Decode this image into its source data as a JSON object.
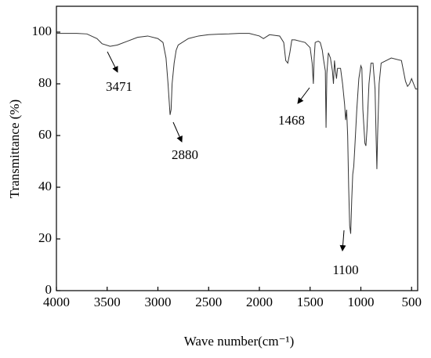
{
  "chart_data": {
    "type": "line",
    "xlabel": "Wave number(cm⁻¹)",
    "ylabel": "Transmittance (%)",
    "color": "#333333",
    "xlim": [
      4000,
      440
    ],
    "xticks": [
      4000,
      3500,
      3000,
      2500,
      2000,
      1500,
      1000,
      500
    ],
    "ylim": [
      0,
      110
    ],
    "yticks": [
      0,
      20,
      40,
      60,
      80,
      100
    ],
    "annotations": [
      "3471",
      "2880",
      "1468",
      "1100"
    ],
    "x": [
      4000,
      3800,
      3700,
      3600,
      3550,
      3471,
      3400,
      3300,
      3200,
      3100,
      3000,
      2950,
      2920,
      2900,
      2880,
      2870,
      2860,
      2840,
      2820,
      2800,
      2700,
      2600,
      2500,
      2400,
      2300,
      2200,
      2100,
      2000,
      1960,
      1900,
      1800,
      1760,
      1740,
      1720,
      1700,
      1680,
      1650,
      1600,
      1550,
      1500,
      1480,
      1468,
      1460,
      1450,
      1420,
      1400,
      1380,
      1370,
      1350,
      1343,
      1335,
      1320,
      1300,
      1280,
      1270,
      1260,
      1250,
      1240,
      1230,
      1200,
      1180,
      1160,
      1150,
      1140,
      1130,
      1120,
      1110,
      1100,
      1090,
      1080,
      1070,
      1060,
      1040,
      1020,
      1000,
      990,
      980,
      960,
      950,
      940,
      920,
      900,
      880,
      860,
      850,
      842,
      835,
      820,
      800,
      700,
      600,
      560,
      540,
      520,
      500,
      480,
      460,
      440
    ],
    "values": [
      99.5,
      99.5,
      99.3,
      97.5,
      95.5,
      94.5,
      95,
      96.5,
      98,
      98.5,
      97.5,
      96,
      90,
      80,
      68,
      70,
      80,
      88,
      93,
      95,
      97.5,
      98.5,
      99,
      99.2,
      99.3,
      99.5,
      99.5,
      98.5,
      97.5,
      99,
      98.5,
      96,
      89,
      88,
      92,
      97,
      97,
      96.5,
      96,
      94,
      88,
      80,
      90,
      96,
      96.5,
      96,
      93,
      90,
      85,
      63,
      84,
      92,
      90,
      85,
      80,
      89,
      85,
      82,
      86,
      86,
      80,
      72,
      66,
      70,
      60,
      40,
      25,
      22,
      35,
      45,
      48,
      55,
      70,
      82,
      87,
      86,
      70,
      57,
      56,
      62,
      80,
      88,
      88,
      78,
      60,
      47,
      60,
      80,
      88,
      90,
      89,
      81,
      79,
      80,
      82,
      80,
      78,
      78
    ]
  }
}
